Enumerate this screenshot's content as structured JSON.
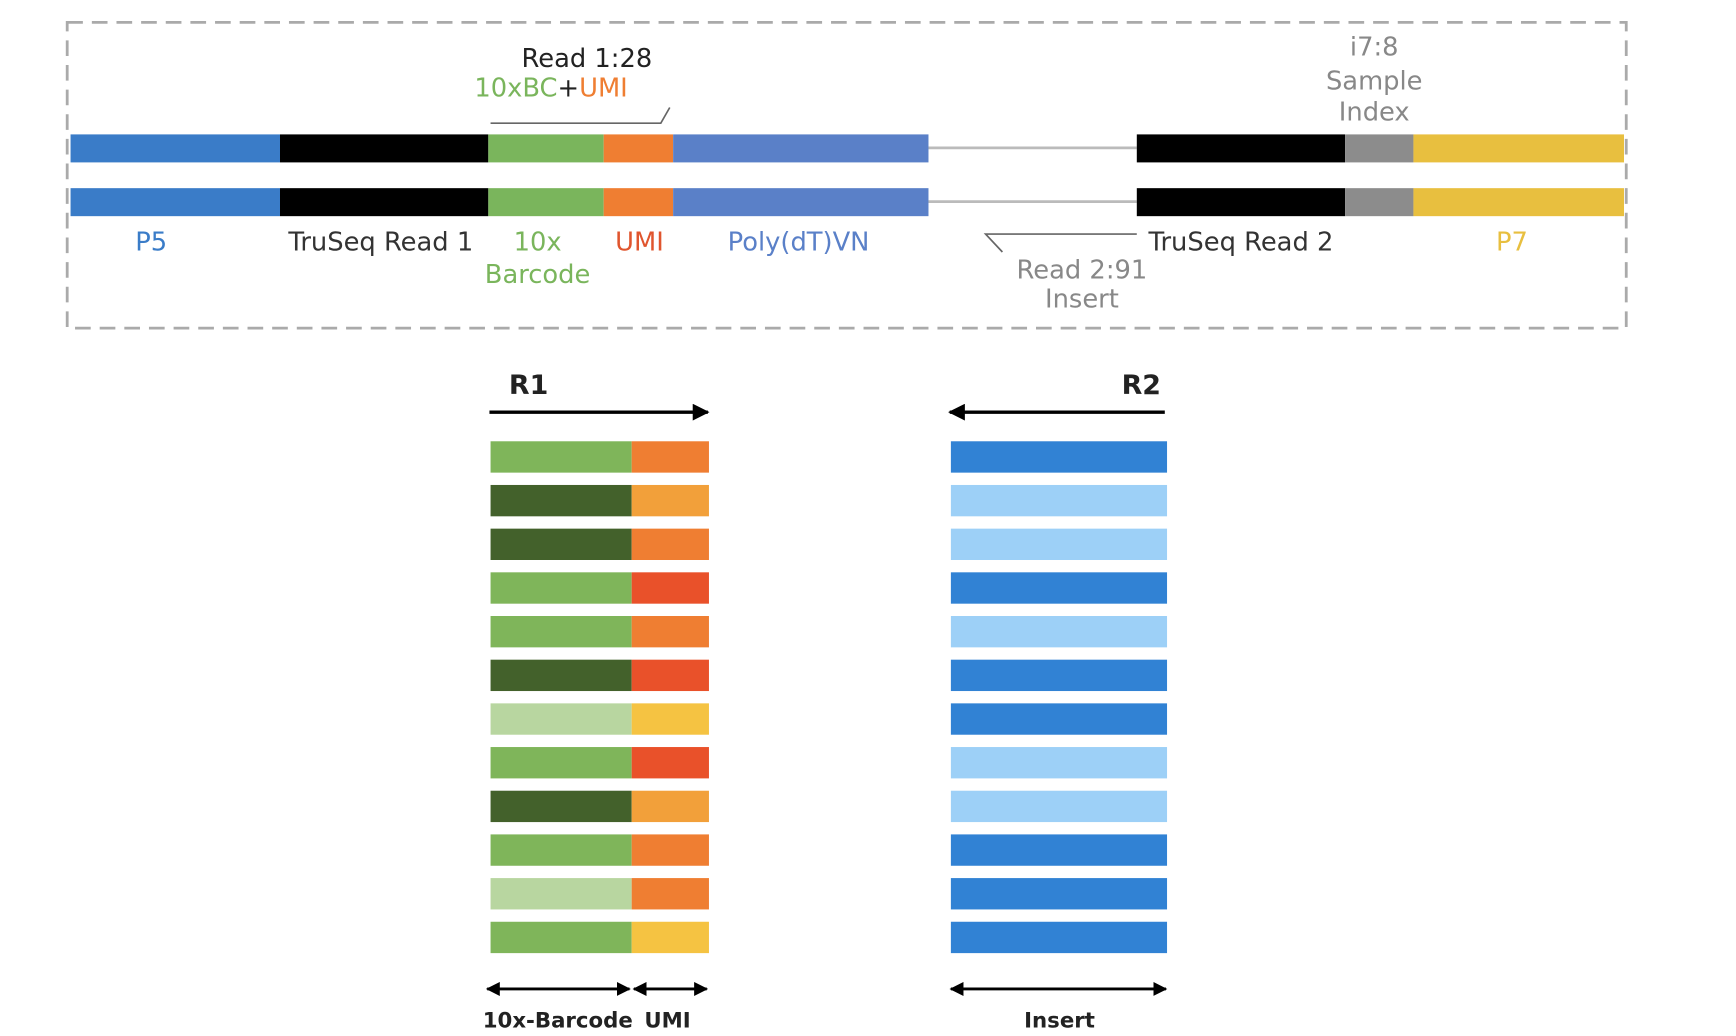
{
  "construct": {
    "read1": {
      "label": "Read 1:28",
      "barcode": "10xBC",
      "plus": "+",
      "umi": "UMI"
    },
    "i7": {
      "line1": "i7:8",
      "line2": "Sample",
      "line3": "Index"
    },
    "segments": {
      "p5": "P5",
      "truseq_read1": "TruSeq Read 1",
      "barcode_line1": "10x",
      "barcode_line2": "Barcode",
      "umi": "UMI",
      "polydt": "Poly(dT)VN",
      "truseq_read2": "TruSeq Read 2",
      "p7": "P7"
    },
    "read2": {
      "line1": "Read 2:91",
      "line2": "Insert"
    }
  },
  "reads": {
    "r1": {
      "title": "R1",
      "barcode_label": "10x-Barcode",
      "umi_label": "UMI"
    },
    "r2": {
      "title": "R2",
      "insert_label": "Insert"
    }
  }
}
